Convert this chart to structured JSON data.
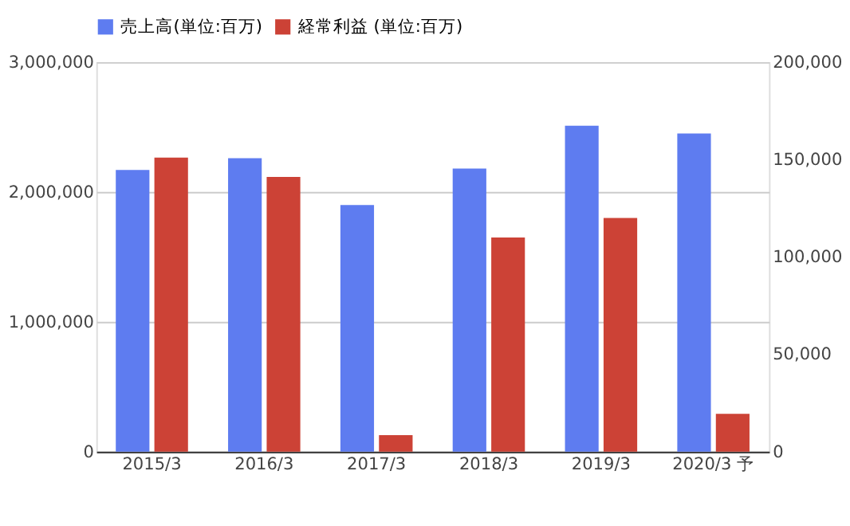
{
  "chart_data": {
    "type": "bar",
    "categories": [
      "2015/3",
      "2016/3",
      "2017/3",
      "2018/3",
      "2019/3",
      "2020/3 予"
    ],
    "series": [
      {
        "name": "売上高(単位:百万)",
        "color": "#5e7cf0",
        "values": [
          2170000,
          2260000,
          1900000,
          2180000,
          2510000,
          2450000
        ]
      },
      {
        "name": "経常利益 (単位:百万)",
        "color": "#cc4236",
        "values": [
          151000,
          141000,
          8500,
          110000,
          120000,
          19400
        ],
        "axis": "y2"
      }
    ],
    "ylim": [
      0,
      3000000
    ],
    "yticks": [
      {
        "value": 0,
        "label": "0"
      },
      {
        "value": 1000000,
        "label": "1,000,000"
      },
      {
        "value": 2000000,
        "label": "2,000,000"
      },
      {
        "value": 3000000,
        "label": "3,000,000"
      }
    ],
    "y2lim": [
      0,
      200000
    ],
    "y2ticks": [
      {
        "value": 0,
        "label": "0"
      },
      {
        "value": 50000,
        "label": "50,000"
      },
      {
        "value": 100000,
        "label": "100,000"
      },
      {
        "value": 150000,
        "label": "150,000"
      },
      {
        "value": 200000,
        "label": "200,000"
      }
    ],
    "grid": "y",
    "legend": "top"
  }
}
